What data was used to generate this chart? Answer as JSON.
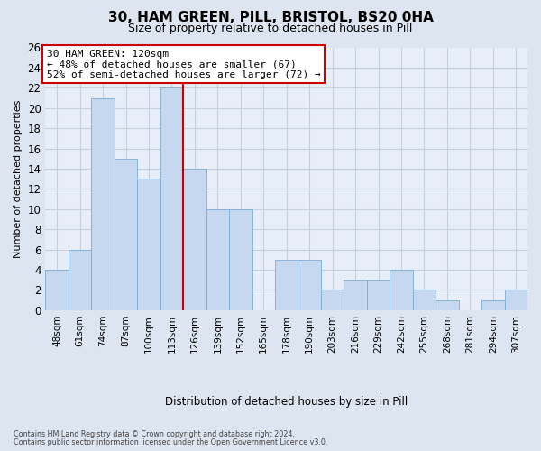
{
  "title": "30, HAM GREEN, PILL, BRISTOL, BS20 0HA",
  "subtitle": "Size of property relative to detached houses in Pill",
  "xlabel": "Distribution of detached houses by size in Pill",
  "ylabel": "Number of detached properties",
  "categories": [
    "48sqm",
    "61sqm",
    "74sqm",
    "87sqm",
    "100sqm",
    "113sqm",
    "126sqm",
    "139sqm",
    "152sqm",
    "165sqm",
    "178sqm",
    "190sqm",
    "203sqm",
    "216sqm",
    "229sqm",
    "242sqm",
    "255sqm",
    "268sqm",
    "281sqm",
    "294sqm",
    "307sqm"
  ],
  "values": [
    4,
    6,
    21,
    15,
    13,
    22,
    14,
    10,
    10,
    0,
    5,
    5,
    2,
    3,
    3,
    4,
    2,
    1,
    0,
    1,
    2
  ],
  "bar_color": "#c5d8f0",
  "bar_edge_color": "#7aadd4",
  "vline_x": 5.5,
  "vline_color": "#cc0000",
  "annotation_text": "30 HAM GREEN: 120sqm\n← 48% of detached houses are smaller (67)\n52% of semi-detached houses are larger (72) →",
  "annotation_box_facecolor": "#ffffff",
  "annotation_box_edgecolor": "#cc0000",
  "ylim": [
    0,
    26
  ],
  "yticks": [
    0,
    2,
    4,
    6,
    8,
    10,
    12,
    14,
    16,
    18,
    20,
    22,
    24,
    26
  ],
  "footer1": "Contains HM Land Registry data © Crown copyright and database right 2024.",
  "footer2": "Contains public sector information licensed under the Open Government Licence v3.0.",
  "fig_bg_color": "#dde5f0",
  "plot_bg_color": "#e8eef8",
  "grid_color": "#c8d0e0"
}
